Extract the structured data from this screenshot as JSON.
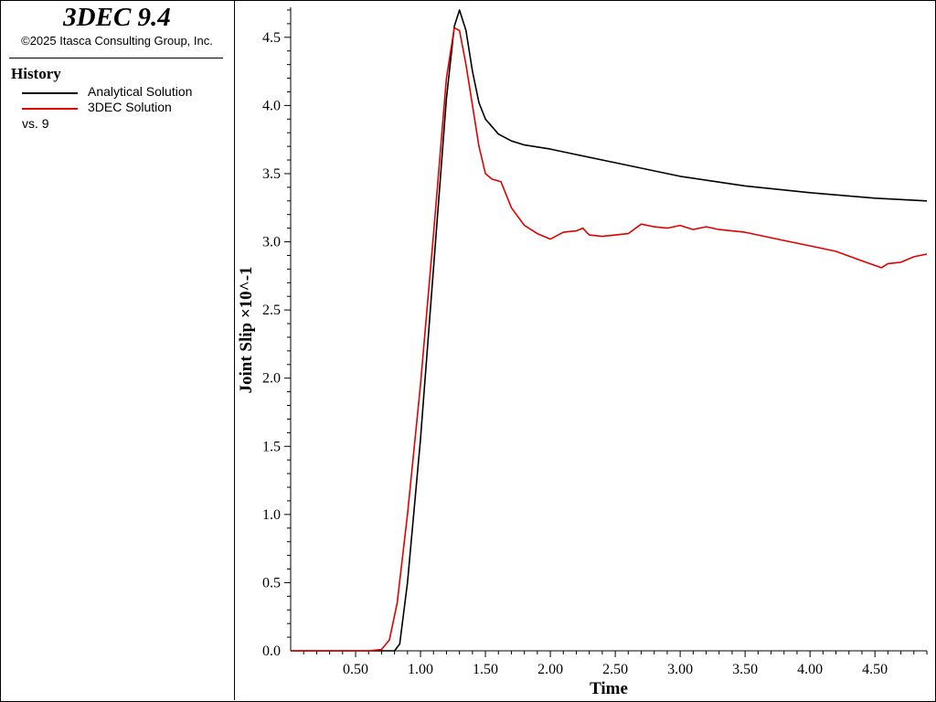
{
  "app": {
    "title": "3DEC 9.4",
    "copyright": "©2025 Itasca Consulting Group, Inc."
  },
  "legend": {
    "heading": "History",
    "vs_label": "vs. 9",
    "items": [
      {
        "label": "Analytical Solution",
        "color": "#000000"
      },
      {
        "label": "3DEC Solution",
        "color": "#e00000"
      }
    ]
  },
  "chart_data": {
    "type": "line",
    "xlabel": "Time",
    "ylabel": "Joint Slip ×10^-1",
    "xlim": [
      0,
      4.9
    ],
    "ylim": [
      0,
      4.72
    ],
    "x_ticks": [
      "0.50",
      "1.00",
      "1.50",
      "2.00",
      "2.50",
      "3.00",
      "3.50",
      "4.00",
      "4.50"
    ],
    "y_ticks": [
      "0.0",
      "0.5",
      "1.0",
      "1.5",
      "2.0",
      "2.5",
      "3.0",
      "3.5",
      "4.0",
      "4.5"
    ],
    "grid": false,
    "series": [
      {
        "name": "Analytical Solution",
        "color": "#000000",
        "points": [
          [
            0,
            0
          ],
          [
            0.8,
            0
          ],
          [
            0.84,
            0.05
          ],
          [
            0.9,
            0.5
          ],
          [
            1.0,
            1.55
          ],
          [
            1.1,
            2.8
          ],
          [
            1.2,
            4.05
          ],
          [
            1.26,
            4.58
          ],
          [
            1.3,
            4.7
          ],
          [
            1.35,
            4.55
          ],
          [
            1.4,
            4.25
          ],
          [
            1.45,
            4.02
          ],
          [
            1.5,
            3.9
          ],
          [
            1.6,
            3.79
          ],
          [
            1.7,
            3.74
          ],
          [
            1.8,
            3.71
          ],
          [
            2.0,
            3.68
          ],
          [
            2.2,
            3.64
          ],
          [
            2.5,
            3.58
          ],
          [
            3.0,
            3.48
          ],
          [
            3.5,
            3.41
          ],
          [
            4.0,
            3.36
          ],
          [
            4.5,
            3.32
          ],
          [
            4.9,
            3.3
          ]
        ]
      },
      {
        "name": "3DEC Solution",
        "color": "#e00000",
        "points": [
          [
            0,
            0
          ],
          [
            0.6,
            0
          ],
          [
            0.7,
            0.01
          ],
          [
            0.76,
            0.08
          ],
          [
            0.82,
            0.35
          ],
          [
            0.9,
            1.0
          ],
          [
            1.0,
            1.95
          ],
          [
            1.1,
            3.05
          ],
          [
            1.2,
            4.2
          ],
          [
            1.26,
            4.57
          ],
          [
            1.3,
            4.55
          ],
          [
            1.35,
            4.3
          ],
          [
            1.4,
            4.0
          ],
          [
            1.45,
            3.7
          ],
          [
            1.5,
            3.5
          ],
          [
            1.55,
            3.46
          ],
          [
            1.62,
            3.44
          ],
          [
            1.7,
            3.25
          ],
          [
            1.8,
            3.12
          ],
          [
            1.9,
            3.06
          ],
          [
            2.0,
            3.02
          ],
          [
            2.1,
            3.07
          ],
          [
            2.2,
            3.08
          ],
          [
            2.25,
            3.1
          ],
          [
            2.3,
            3.05
          ],
          [
            2.4,
            3.04
          ],
          [
            2.6,
            3.06
          ],
          [
            2.7,
            3.13
          ],
          [
            2.8,
            3.11
          ],
          [
            2.9,
            3.1
          ],
          [
            3.0,
            3.12
          ],
          [
            3.1,
            3.09
          ],
          [
            3.2,
            3.11
          ],
          [
            3.3,
            3.09
          ],
          [
            3.5,
            3.07
          ],
          [
            3.6,
            3.05
          ],
          [
            3.8,
            3.01
          ],
          [
            4.0,
            2.97
          ],
          [
            4.2,
            2.93
          ],
          [
            4.4,
            2.86
          ],
          [
            4.55,
            2.81
          ],
          [
            4.6,
            2.84
          ],
          [
            4.7,
            2.85
          ],
          [
            4.8,
            2.89
          ],
          [
            4.9,
            2.91
          ]
        ]
      }
    ]
  }
}
